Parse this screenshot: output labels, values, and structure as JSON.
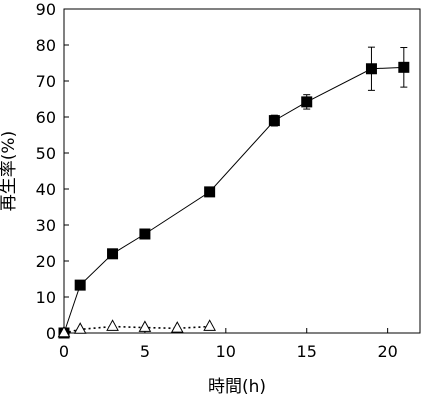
{
  "chart_data": {
    "type": "scatter",
    "xlabel": "時間(h)",
    "ylabel": "再生率(%)",
    "xlim": [
      0,
      22
    ],
    "ylim": [
      0,
      90
    ],
    "x_ticks": [
      0,
      5,
      10,
      15,
      20
    ],
    "y_ticks": [
      0,
      10,
      20,
      30,
      40,
      50,
      60,
      70,
      80,
      90
    ],
    "grid": false,
    "legend": "none",
    "series": [
      {
        "marker": "filled-square",
        "line": "solid",
        "color": "#000000",
        "x": [
          0,
          1,
          3,
          5,
          9,
          13,
          15,
          19,
          21
        ],
        "values": [
          0,
          13.3,
          22,
          27.5,
          39.2,
          59,
          64.2,
          73.4,
          73.8
        ],
        "error": [
          0,
          0,
          0,
          0,
          1,
          1.5,
          2,
          6,
          5.5
        ]
      },
      {
        "marker": "open-triangle",
        "line": "dotted",
        "color": "#000000",
        "x": [
          0,
          1,
          3,
          5,
          7,
          9
        ],
        "values": [
          0,
          1,
          1.8,
          1.5,
          1.3,
          1.8
        ],
        "error": [
          0,
          0,
          0,
          0,
          0,
          0
        ]
      }
    ]
  }
}
